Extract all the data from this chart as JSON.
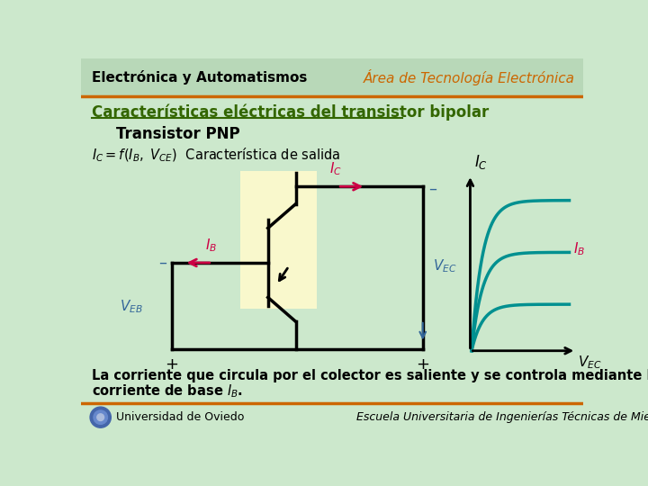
{
  "bg_color": "#cce8cc",
  "header_bg": "#b8d8b8",
  "title_left": "Electrónica y Automatismos",
  "title_right": "Área de Tecnología Electrónica",
  "section_title": "Características eléctricas del transistor bipolar",
  "subtitle": "Transistor PNP",
  "teal_color": "#009090",
  "red_color": "#cc0044",
  "orange_color": "#cc6600",
  "green_color": "#336600",
  "blue_color": "#336699",
  "dark_color": "#000000",
  "yellow_bg": "#fff8cc",
  "footer_line_color": "#cc6600",
  "footer_left": "Universidad de Oviedo",
  "footer_right": "Escuela Universitaria de Ingenierías Técnicas de Mieres"
}
